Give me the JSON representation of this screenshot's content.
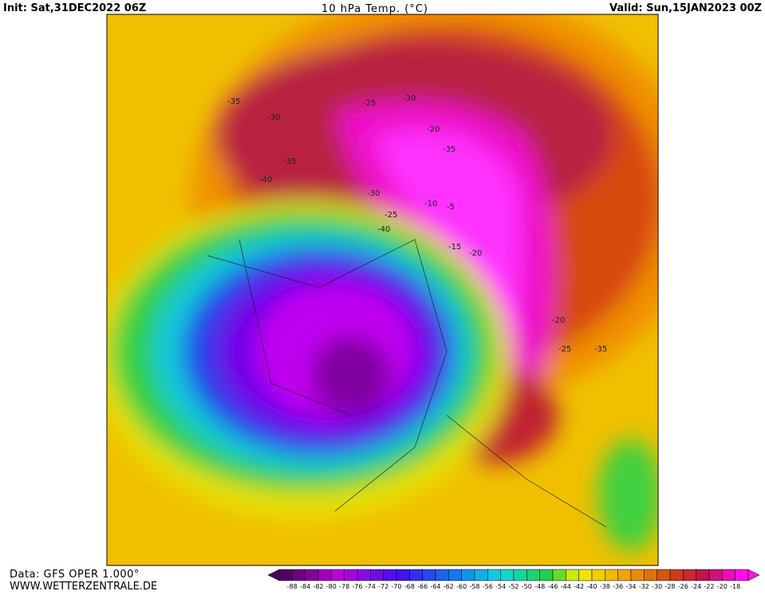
{
  "header": {
    "init": "Init: Sat,31DEC2022 06Z",
    "title": "10 hPa Temp. (°C)",
    "valid": "Valid: Sun,15JAN2023 00Z"
  },
  "footer": {
    "source": "Data: GFS OPER 1.000°",
    "website": "WWW.WETTERZENTRALE.DE"
  },
  "colorbar": {
    "labels": [
      -88,
      -84,
      -82,
      -80,
      -78,
      -76,
      -74,
      -72,
      -70,
      -68,
      -66,
      -64,
      -62,
      -60,
      -58,
      -56,
      -54,
      -52,
      -50,
      -48,
      -46,
      -44,
      -42,
      -40,
      -38,
      -36,
      -34,
      -32,
      -30,
      -28,
      -26,
      -24,
      -22,
      -20,
      -18
    ]
  },
  "map": {
    "contour_labels": [
      -35,
      -30,
      -35,
      -25,
      -30,
      -20,
      -35,
      -40,
      -25,
      -40,
      -10,
      -5,
      -15,
      -20,
      -20,
      -25,
      -35,
      -30
    ]
  }
}
